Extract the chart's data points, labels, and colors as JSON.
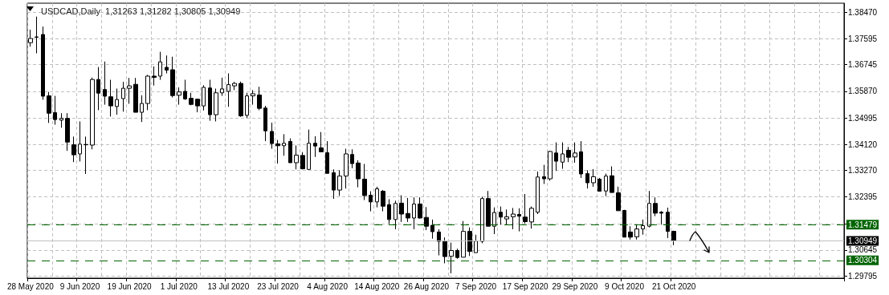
{
  "chart_data": {
    "type": "candlestick",
    "title": "USDCAD,Daily  1,31263 1,31282 1,30805 1,30949",
    "categories": [
      "28 May 2020",
      null,
      null,
      null,
      null,
      null,
      null,
      null,
      "9 Jun 2020",
      null,
      null,
      null,
      null,
      null,
      null,
      null,
      "19 Jun 2020",
      null,
      null,
      null,
      null,
      null,
      null,
      null,
      "1 Jul 2020",
      null,
      null,
      null,
      null,
      null,
      null,
      null,
      "13 Jul 2020",
      null,
      null,
      null,
      null,
      null,
      null,
      null,
      "23 Jul 2020",
      null,
      null,
      null,
      null,
      null,
      null,
      null,
      "4 Aug 2020",
      null,
      null,
      null,
      null,
      null,
      null,
      null,
      "14 Aug 2020",
      null,
      null,
      null,
      null,
      null,
      null,
      null,
      "26 Aug 2020",
      null,
      null,
      null,
      null,
      null,
      null,
      null,
      "7 Sep 2020",
      null,
      null,
      null,
      null,
      null,
      null,
      null,
      "17 Sep 2020",
      null,
      null,
      null,
      null,
      null,
      null,
      null,
      "29 Sep 2020",
      null,
      null,
      null,
      null,
      null,
      null,
      null,
      "9 Oct 2020",
      null,
      null,
      null,
      null,
      null,
      null,
      null,
      "21 Oct 2020",
      null,
      null,
      null,
      null,
      null,
      null,
      null,
      null,
      null,
      null,
      null,
      null,
      null,
      null,
      null,
      null,
      null,
      null,
      null,
      null,
      null,
      null,
      null,
      null,
      null,
      null,
      null
    ],
    "ohlc": [
      [
        1.3747,
        1.379,
        1.3734,
        1.3761
      ],
      [
        1.3766,
        1.3833,
        1.3712,
        1.3765
      ],
      [
        1.3774,
        1.38,
        1.3559,
        1.3571
      ],
      [
        1.3572,
        1.3585,
        1.3483,
        1.3515
      ],
      [
        1.3517,
        1.3572,
        1.3477,
        1.3494
      ],
      [
        1.3492,
        1.3515,
        1.3467,
        1.3498
      ],
      [
        1.3498,
        1.3515,
        1.3391,
        1.342
      ],
      [
        1.3411,
        1.3438,
        1.3354,
        1.3378
      ],
      [
        1.3381,
        1.3488,
        1.3356,
        1.3413
      ],
      [
        1.3412,
        1.3438,
        1.3315,
        1.3411
      ],
      [
        1.341,
        1.3632,
        1.3396,
        1.3626
      ],
      [
        1.3626,
        1.3667,
        1.3525,
        1.3581
      ],
      [
        1.3593,
        1.3685,
        1.3543,
        1.3571
      ],
      [
        1.3569,
        1.3625,
        1.3504,
        1.3539
      ],
      [
        1.3537,
        1.3596,
        1.351,
        1.356
      ],
      [
        1.3563,
        1.3618,
        1.352,
        1.3597
      ],
      [
        1.3597,
        1.3631,
        1.3546,
        1.3605
      ],
      [
        1.361,
        1.3631,
        1.3518,
        1.3518
      ],
      [
        1.3518,
        1.3574,
        1.3486,
        1.3547
      ],
      [
        1.3547,
        1.3641,
        1.3525,
        1.3637
      ],
      [
        1.3637,
        1.3669,
        1.3606,
        1.3633
      ],
      [
        1.3637,
        1.3717,
        1.3625,
        1.3684
      ],
      [
        1.3666,
        1.3705,
        1.3646,
        1.3657
      ],
      [
        1.3658,
        1.3701,
        1.3567,
        1.3573
      ],
      [
        1.3574,
        1.36,
        1.3543,
        1.3585
      ],
      [
        1.3587,
        1.3625,
        1.3559,
        1.3562
      ],
      [
        1.3564,
        1.3582,
        1.3541,
        1.3544
      ],
      [
        1.3561,
        1.3563,
        1.3518,
        1.3539
      ],
      [
        1.3539,
        1.3607,
        1.3524,
        1.36
      ],
      [
        1.3598,
        1.3625,
        1.349,
        1.351
      ],
      [
        1.351,
        1.3596,
        1.3488,
        1.3582
      ],
      [
        1.3582,
        1.3632,
        1.3572,
        1.3595
      ],
      [
        1.3587,
        1.3646,
        1.3536,
        1.3609
      ],
      [
        1.3605,
        1.3618,
        1.3591,
        1.3613
      ],
      [
        1.3613,
        1.3619,
        1.3503,
        1.3506
      ],
      [
        1.3508,
        1.3582,
        1.3499,
        1.3572
      ],
      [
        1.3572,
        1.3591,
        1.3543,
        1.3579
      ],
      [
        1.3575,
        1.3602,
        1.3525,
        1.3531
      ],
      [
        1.3532,
        1.3539,
        1.3423,
        1.3457
      ],
      [
        1.3455,
        1.3484,
        1.3398,
        1.3415
      ],
      [
        1.3414,
        1.3427,
        1.3349,
        1.3408
      ],
      [
        1.3408,
        1.3446,
        1.3375,
        1.3416
      ],
      [
        1.3422,
        1.3432,
        1.3352,
        1.3352
      ],
      [
        1.3352,
        1.3409,
        1.333,
        1.3377
      ],
      [
        1.3376,
        1.3387,
        1.333,
        1.3332
      ],
      [
        1.333,
        1.3461,
        1.333,
        1.3416
      ],
      [
        1.3416,
        1.3439,
        1.3371,
        1.3407
      ],
      [
        1.3401,
        1.3453,
        1.3388,
        1.3388
      ],
      [
        1.3385,
        1.3423,
        1.3317,
        1.3317
      ],
      [
        1.3319,
        1.333,
        1.3233,
        1.3262
      ],
      [
        1.3262,
        1.3327,
        1.3243,
        1.3308
      ],
      [
        1.3308,
        1.3398,
        1.3267,
        1.3381
      ],
      [
        1.3379,
        1.3396,
        1.3334,
        1.3349
      ],
      [
        1.3351,
        1.336,
        1.3271,
        1.3299
      ],
      [
        1.3298,
        1.3348,
        1.3229,
        1.3244
      ],
      [
        1.3245,
        1.3258,
        1.3192,
        1.3223
      ],
      [
        1.3223,
        1.3273,
        1.3205,
        1.3266
      ],
      [
        1.3258,
        1.3262,
        1.3192,
        1.3209
      ],
      [
        1.3214,
        1.3232,
        1.3151,
        1.3165
      ],
      [
        1.3165,
        1.3227,
        1.3133,
        1.3218
      ],
      [
        1.3219,
        1.3245,
        1.3157,
        1.3183
      ],
      [
        1.3185,
        1.3236,
        1.3157,
        1.317
      ],
      [
        1.317,
        1.3238,
        1.3133,
        1.3216
      ],
      [
        1.3216,
        1.3238,
        1.3168,
        1.317
      ],
      [
        1.3172,
        1.3206,
        1.313,
        1.3143
      ],
      [
        1.3146,
        1.3165,
        1.3102,
        1.3125
      ],
      [
        1.3124,
        1.3133,
        1.3047,
        1.3093
      ],
      [
        1.3093,
        1.3106,
        1.3021,
        1.3043
      ],
      [
        1.3044,
        1.3089,
        1.2988,
        1.3063
      ],
      [
        1.3063,
        1.3069,
        1.3036,
        1.304
      ],
      [
        1.3041,
        1.316,
        1.3041,
        1.3126
      ],
      [
        1.3126,
        1.3139,
        1.3045,
        1.306
      ],
      [
        1.3056,
        1.3115,
        1.3056,
        1.3094
      ],
      [
        1.3093,
        1.324,
        1.3087,
        1.3234
      ],
      [
        1.3234,
        1.3259,
        1.3143,
        1.3143
      ],
      [
        1.3143,
        1.3205,
        1.3117,
        1.3188
      ],
      [
        1.3189,
        1.3208,
        1.3148,
        1.3173
      ],
      [
        1.3167,
        1.3198,
        1.3148,
        1.3174
      ],
      [
        1.3174,
        1.3203,
        1.3133,
        1.3183
      ],
      [
        1.3182,
        1.3202,
        1.3126,
        1.3176
      ],
      [
        1.3173,
        1.3249,
        1.3152,
        1.3158
      ],
      [
        1.3157,
        1.3208,
        1.3135,
        1.3202
      ],
      [
        1.3189,
        1.3323,
        1.3183,
        1.3305
      ],
      [
        1.3306,
        1.3345,
        1.3282,
        1.3299
      ],
      [
        1.3299,
        1.3391,
        1.3293,
        1.3389
      ],
      [
        1.3384,
        1.3419,
        1.3325,
        1.3357
      ],
      [
        1.3354,
        1.3419,
        1.3332,
        1.3381
      ],
      [
        1.3393,
        1.3404,
        1.3354,
        1.337
      ],
      [
        1.3371,
        1.3419,
        1.3352,
        1.3384
      ],
      [
        1.3388,
        1.3423,
        1.3302,
        1.3315
      ],
      [
        1.3316,
        1.3327,
        1.3267,
        1.3286
      ],
      [
        1.3286,
        1.3331,
        1.3273,
        1.3306
      ],
      [
        1.3298,
        1.3302,
        1.3257,
        1.3258
      ],
      [
        1.3259,
        1.3316,
        1.3242,
        1.3308
      ],
      [
        1.3309,
        1.334,
        1.3254,
        1.3254
      ],
      [
        1.3253,
        1.3273,
        1.3194,
        1.3194
      ],
      [
        1.3195,
        1.3197,
        1.3107,
        1.3107
      ],
      [
        1.3124,
        1.3143,
        1.3099,
        1.3107
      ],
      [
        1.3108,
        1.3147,
        1.3099,
        1.3134
      ],
      [
        1.3134,
        1.3165,
        1.3115,
        1.3145
      ],
      [
        1.3143,
        1.3259,
        1.3139,
        1.3218
      ],
      [
        1.3218,
        1.3238,
        1.3176,
        1.3186
      ],
      [
        1.3189,
        1.3193,
        1.3148,
        1.3186
      ],
      [
        1.3189,
        1.3204,
        1.3104,
        1.3126
      ],
      [
        1.31263,
        1.31282,
        1.30805,
        1.30949
      ],
      null,
      null,
      null,
      null,
      null,
      null,
      null,
      null,
      null,
      null,
      null,
      null,
      null,
      null,
      null,
      null,
      null,
      null,
      null,
      null,
      null,
      null,
      null,
      null,
      null,
      null,
      null
    ],
    "ylim": [
      1.2972,
      1.3877
    ],
    "yticks": [
      1.29795,
      1.30645,
      {
        "value": 1.3152,
        "label": null
      },
      1.32395,
      {
        "value": 1.3327,
        "label": "1.33270"
      },
      {
        "value": 1.3412,
        "label": "1.34120"
      },
      1.34995,
      {
        "value": 1.3587,
        "label": "1.35870"
      },
      1.36745,
      1.37595,
      {
        "value": 1.3847,
        "label": "1.38470"
      }
    ],
    "grid": true,
    "ref_lines": [
      {
        "axis": "y",
        "value": 1.31479,
        "label": "1.31479",
        "color": "#006400",
        "line_style": "dashed"
      },
      {
        "axis": "y",
        "value": 1.30304,
        "label": "1.30304",
        "color": "#006400",
        "line_style": "dashed"
      },
      {
        "axis": "y",
        "value": 1.30949,
        "label": "1.30949",
        "color": "#c0c0c0",
        "line_style": "solid"
      }
    ]
  }
}
